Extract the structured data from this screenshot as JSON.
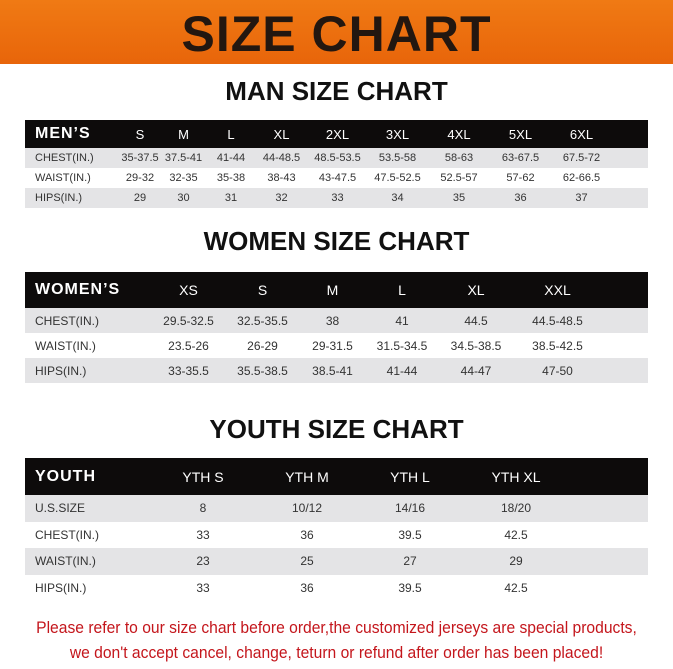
{
  "banner": "SIZE CHART",
  "men": {
    "title": "MAN SIZE CHART",
    "header": [
      "MEN’S",
      "S",
      "M",
      "L",
      "XL",
      "2XL",
      "3XL",
      "4XL",
      "5XL",
      "6XL"
    ],
    "rows": [
      [
        "CHEST(IN.)",
        "35-37.5",
        "37.5-41",
        "41-44",
        "44-48.5",
        "48.5-53.5",
        "53.5-58",
        "58-63",
        "63-67.5",
        "67.5-72"
      ],
      [
        "WAIST(IN.)",
        "29-32",
        "32-35",
        "35-38",
        "38-43",
        "43-47.5",
        "47.5-52.5",
        "52.5-57",
        "57-62",
        "62-66.5"
      ],
      [
        "HIPS(IN.)",
        "29",
        "30",
        "31",
        "32",
        "33",
        "34",
        "35",
        "36",
        "37"
      ]
    ]
  },
  "women": {
    "title": "WOMEN SIZE CHART",
    "header": [
      "WOMEN’S",
      "XS",
      "S",
      "M",
      "L",
      "XL",
      "XXL"
    ],
    "rows": [
      [
        "CHEST(IN.)",
        "29.5-32.5",
        "32.5-35.5",
        "38",
        "41",
        "44.5",
        "44.5-48.5"
      ],
      [
        "WAIST(IN.)",
        "23.5-26",
        "26-29",
        "29-31.5",
        "31.5-34.5",
        "34.5-38.5",
        "38.5-42.5"
      ],
      [
        "HIPS(IN.)",
        "33-35.5",
        "35.5-38.5",
        "38.5-41",
        "41-44",
        "44-47",
        "47-50"
      ]
    ]
  },
  "youth": {
    "title": "YOUTH SIZE CHART",
    "header": [
      "YOUTH",
      "YTH S",
      "YTH M",
      "YTH L",
      "YTH XL"
    ],
    "rows": [
      [
        "U.S.SIZE",
        "8",
        "10/12",
        "14/16",
        "18/20"
      ],
      [
        "CHEST(IN.)",
        "33",
        "36",
        "39.5",
        "42.5"
      ],
      [
        "WAIST(IN.)",
        "23",
        "25",
        "27",
        "29"
      ],
      [
        "HIPS(IN.)",
        "33",
        "36",
        "39.5",
        "42.5"
      ]
    ]
  },
  "note": {
    "line1": "Please refer to our size chart before order,the customized jerseys are special products,",
    "line2": "we don't accept cancel, change, teturn or refund after order has been placed!"
  }
}
